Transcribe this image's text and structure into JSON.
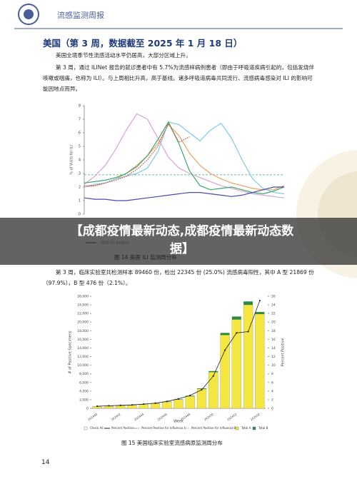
{
  "header": {
    "title": "流感监测周报"
  },
  "heading": "美国（第 3 周，数据截至 2025 年 1 月 18 日）",
  "paragraphs": [
    "美国全境季节性流感活动水平仍居高，大部分区域上升。",
    "第 3 周，通过 ILINet 报告的就诊患者中有 5.7%为流感样病例患者（即由于呼吸道疾病引起的，包括发烧伴咳嗽或咽痛，也称为 ILI）。与上周相比升高，高于基线。诸多呼吸道病毒共同流行、流感病毒感染对 ILI 的影响可能因地点而异。",
    "第 3 周，临床实验室共检测样本 89460 份，检出 22345 份 (25.0%) 流感病毒阳性，其中 A 型 21869 份 （97.9%），B 型 476 份（2.1%）。"
  ],
  "banner": "【成都疫情最新动态,成都疫情最新动态数据】",
  "page_number": 14,
  "chart_data": [
    {
      "type": "line",
      "ylabel": "% of Visits for ILI",
      "caption": "图 14  美国 ILI 监测周分布",
      "categories": [
        null,
        null,
        null,
        null,
        null,
        null,
        null,
        null,
        null,
        null,
        null,
        null,
        null,
        null,
        null,
        null,
        null,
        null,
        null,
        null
      ],
      "ylim": [
        0,
        8
      ],
      "yticks": [
        0,
        1,
        2,
        3,
        4,
        5,
        6,
        7,
        8
      ],
      "baseline": 2.9,
      "baseline_color": "#3aaa6a",
      "series": [
        {
          "color": "#d6a3d8",
          "values": [
            2.2,
            2.8,
            3.6,
            4.8,
            6.2,
            7.4,
            7.0,
            5.6,
            4.2,
            3.4,
            3.0,
            2.7,
            2.4,
            2.1,
            1.9,
            1.7,
            1.5,
            1.4,
            1.3,
            1.2
          ]
        },
        {
          "color": "#e8a060",
          "values": [
            2.0,
            2.1,
            2.3,
            2.6,
            3.0,
            3.6,
            4.3,
            5.2,
            6.6,
            5.8,
            4.5,
            3.6,
            3.0,
            2.6,
            2.3,
            2.1,
            1.9,
            1.8,
            1.8,
            2.1
          ]
        },
        {
          "color": "#7fc8e8",
          "values": [
            2.0,
            2.2,
            2.3,
            2.6,
            2.8,
            3.0,
            3.4,
            4.6,
            6.8,
            6.6,
            6.0,
            5.4,
            6.2,
            6.7,
            5.6,
            4.0,
            2.6,
            1.9,
            1.6,
            1.5
          ]
        },
        {
          "color": "#3aaa6a",
          "values": [
            2.3,
            2.4,
            2.5,
            2.7,
            3.0,
            3.5,
            4.3,
            5.5,
            6.8,
            5.2,
            3.2,
            2.1,
            1.8,
            1.9,
            2.0,
            1.8,
            1.6,
            1.5,
            1.7,
            2.0
          ]
        },
        {
          "name": "2019-20 Season",
          "color": "#4a4aa8",
          "values": [
            1.2,
            1.1,
            1.1,
            1.0,
            1.0,
            1.1,
            1.2,
            1.3,
            1.4,
            1.5,
            1.6,
            1.6,
            1.5,
            1.4,
            1.3,
            1.4,
            1.6,
            1.8,
            2.0,
            2.0
          ]
        },
        {
          "color": "#d04040",
          "dashed": true,
          "values": [
            2.1,
            2.1,
            2.3,
            2.5,
            2.8,
            3.3,
            4.0,
            5.0,
            6.7,
            5.3,
            5.7,
            null,
            null,
            null,
            null,
            null,
            null,
            null,
            null,
            null
          ]
        }
      ]
    },
    {
      "type": "bar",
      "ylabel": "# of Positive Specimens",
      "y2label": "Percent Positive",
      "xlabel": "Week",
      "caption": "图 15  美国临床实验室流感病原监测周分布",
      "categories": [
        "202440",
        null,
        "202442",
        null,
        "202444",
        null,
        "202446",
        null,
        "202448",
        null,
        "202450",
        null,
        "202452",
        null,
        "202502"
      ],
      "ylim": [
        0,
        26000
      ],
      "yticks": [
        0,
        {
          "value": 2000,
          "label": "2,000"
        },
        {
          "value": 4000,
          "label": "4,000"
        },
        {
          "value": 6000,
          "label": "6,000"
        },
        {
          "value": 8000,
          "label": "8,000"
        },
        {
          "value": 10000,
          "label": "10,000"
        },
        {
          "value": 12000,
          "label": "12,000"
        },
        {
          "value": 14000,
          "label": "14,000"
        },
        {
          "value": 16000,
          "label": "16,000"
        },
        {
          "value": 18000,
          "label": "18,000"
        },
        {
          "value": 20000,
          "label": "20,000"
        },
        {
          "value": 22000,
          "label": "22,000"
        },
        {
          "value": 24000,
          "label": "24,000"
        },
        {
          "value": 26000,
          "label": "26,000"
        }
      ],
      "y2lim": [
        0,
        26
      ],
      "y2ticks": [
        0,
        2,
        4,
        6,
        8,
        10,
        12,
        14,
        16,
        18,
        20,
        22,
        24,
        26
      ],
      "series": [
        {
          "name": "Total A",
          "color": "#f5e642",
          "values": [
            400,
            500,
            600,
            700,
            850,
            1100,
            1500,
            2000,
            2800,
            4500,
            8400,
            17000,
            20600,
            24000,
            21869
          ]
        },
        {
          "name": "Total B",
          "color": "#2e8b3e",
          "values": [
            50,
            50,
            50,
            60,
            60,
            70,
            80,
            100,
            120,
            150,
            250,
            500,
            700,
            800,
            476
          ]
        },
        {
          "name": "Percent Positive",
          "color": "#222222",
          "axis": "y2",
          "values": [
            0.5,
            0.6,
            0.7,
            0.8,
            1.0,
            1.2,
            1.6,
            2.2,
            3.0,
            4.3,
            7.5,
            13.5,
            17.5,
            17.8,
            25.0
          ]
        }
      ],
      "legend_extra": [
        "Check All",
        "Percent Positive for Influenza A",
        "Percent Positive for Influenza B"
      ]
    }
  ]
}
